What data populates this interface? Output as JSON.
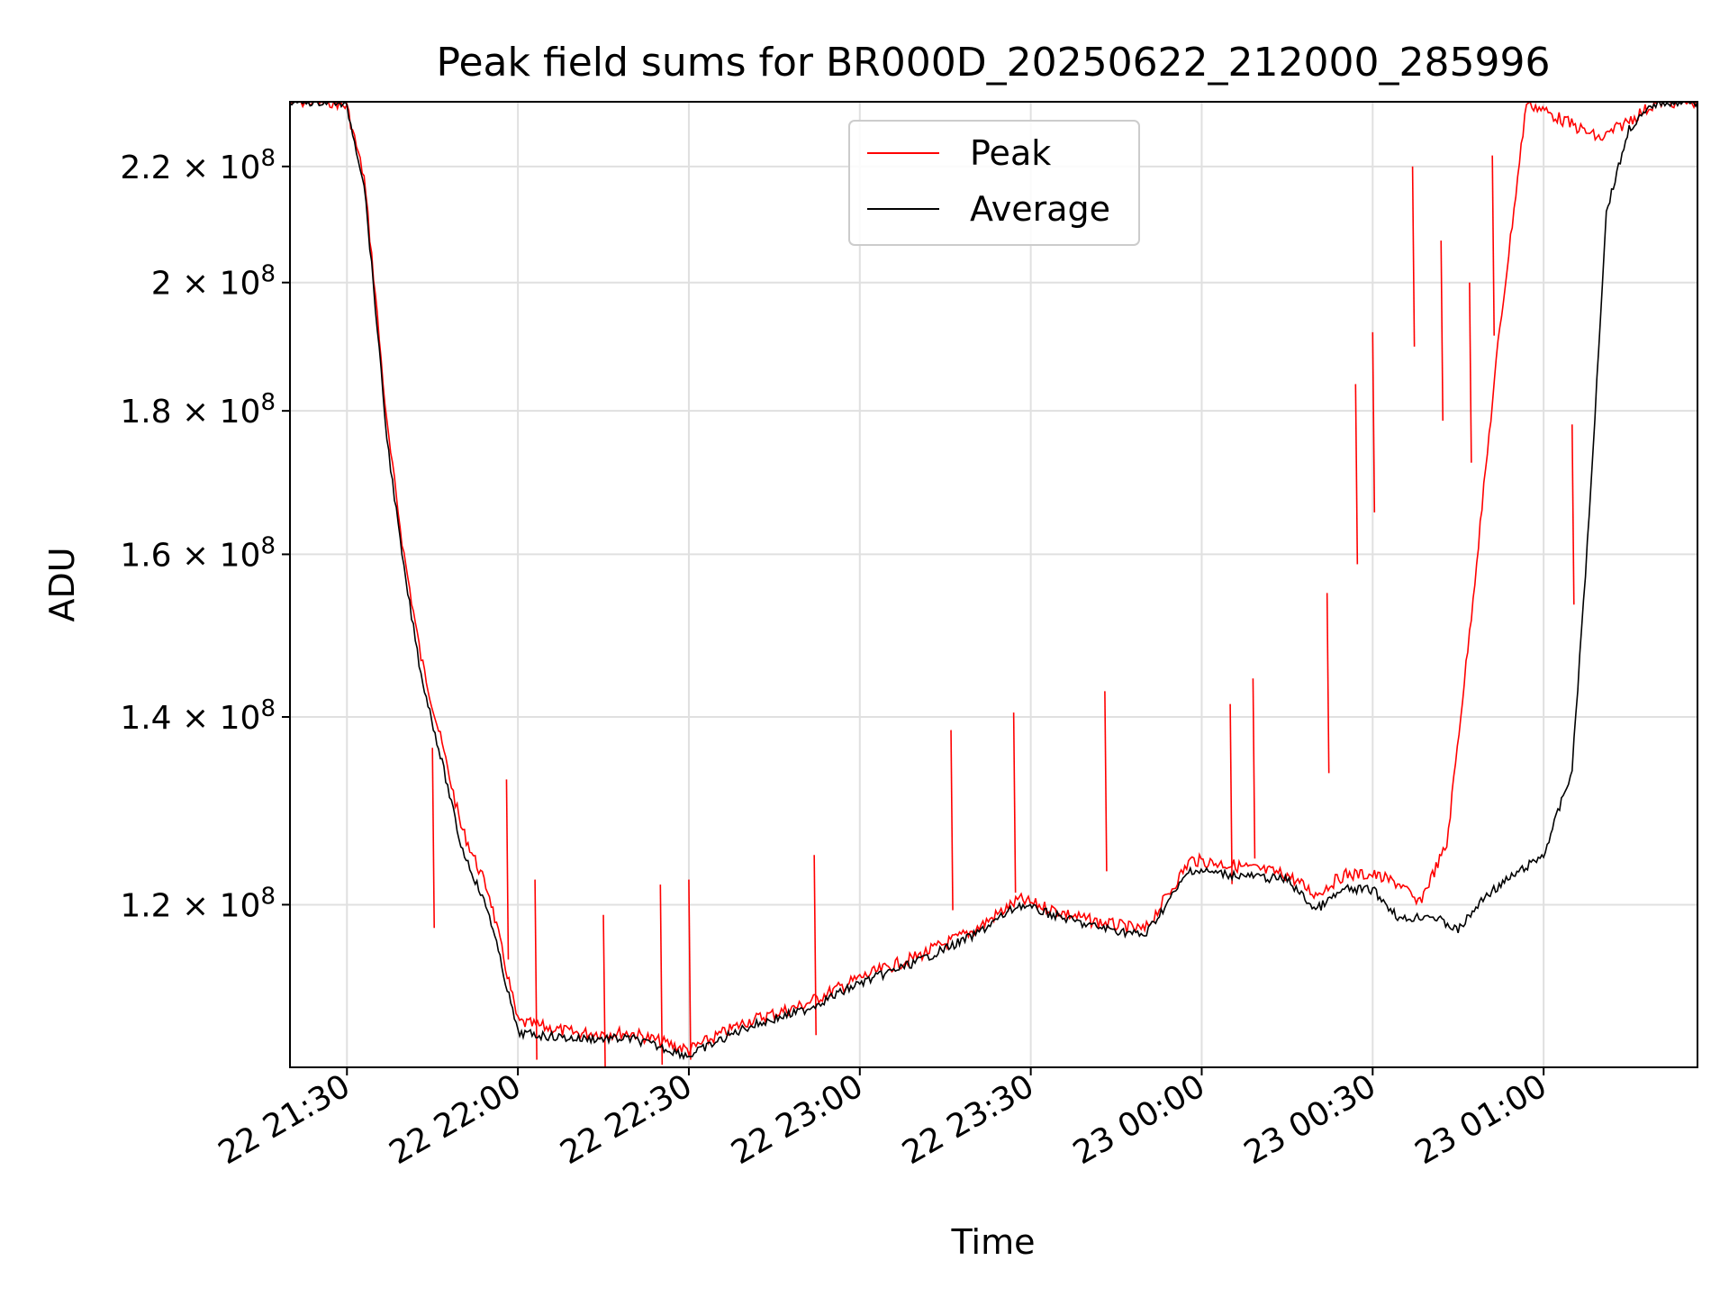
{
  "chart_data": {
    "type": "line",
    "title": "Peak field sums for BR000D_20250622_212000_285996",
    "xlabel": "Time",
    "ylabel": "ADU",
    "y_scale": "log",
    "ylim": [
      105000000,
      232000000
    ],
    "y_ticks": [
      {
        "value": 120000000,
        "mantissa": "1.2",
        "exponent": "8"
      },
      {
        "value": 140000000,
        "mantissa": "1.4",
        "exponent": "8"
      },
      {
        "value": 160000000,
        "mantissa": "1.6",
        "exponent": "8"
      },
      {
        "value": 180000000,
        "mantissa": "1.8",
        "exponent": "8"
      },
      {
        "value": 200000000,
        "mantissa": "2",
        "exponent": "8"
      },
      {
        "value": 220000000,
        "mantissa": "2.2",
        "exponent": "8"
      }
    ],
    "xlim": [
      "2025-06-22 21:20",
      "2025-06-23 01:27"
    ],
    "x_ticks": [
      {
        "value": "2025-06-22 21:30",
        "label": "22 21:30"
      },
      {
        "value": "2025-06-22 22:00",
        "label": "22 22:00"
      },
      {
        "value": "2025-06-22 22:30",
        "label": "22 22:30"
      },
      {
        "value": "2025-06-22 23:00",
        "label": "22 23:00"
      },
      {
        "value": "2025-06-22 23:30",
        "label": "22 23:30"
      },
      {
        "value": "2025-06-23 00:00",
        "label": "23 00:00"
      },
      {
        "value": "2025-06-23 00:30",
        "label": "23 00:30"
      },
      {
        "value": "2025-06-23 01:00",
        "label": "23 01:00"
      }
    ],
    "grid": true,
    "legend": {
      "placement": "top-center"
    },
    "series": [
      {
        "name": "Peak",
        "color": "#ff0000",
        "points": [
          [
            "2025-06-22 21:20",
            232000000
          ],
          [
            "2025-06-22 21:28",
            232000000
          ],
          [
            "2025-06-22 21:30",
            231000000
          ],
          [
            "2025-06-22 21:33",
            218000000
          ],
          [
            "2025-06-22 21:35",
            198000000
          ],
          [
            "2025-06-22 21:37",
            178000000
          ],
          [
            "2025-06-22 21:40",
            160000000
          ],
          [
            "2025-06-22 21:43",
            147000000
          ],
          [
            "2025-06-22 21:47",
            136000000
          ],
          [
            "2025-06-22 21:50",
            128000000
          ],
          [
            "2025-06-22 21:55",
            121000000
          ],
          [
            "2025-06-22 22:00",
            109000000
          ],
          [
            "2025-06-22 22:10",
            108000000
          ],
          [
            "2025-06-22 22:20",
            108000000
          ],
          [
            "2025-06-22 22:30",
            106500000
          ],
          [
            "2025-06-22 22:40",
            109000000
          ],
          [
            "2025-06-22 22:50",
            110500000
          ],
          [
            "2025-06-22 23:00",
            113000000
          ],
          [
            "2025-06-22 23:10",
            115000000
          ],
          [
            "2025-06-22 23:20",
            117500000
          ],
          [
            "2025-06-22 23:28",
            120500000
          ],
          [
            "2025-06-22 23:40",
            118500000
          ],
          [
            "2025-06-22 23:50",
            117500000
          ],
          [
            "2025-06-22 23:58",
            124500000
          ],
          [
            "2025-06-23 00:05",
            124000000
          ],
          [
            "2025-06-23 00:15",
            123000000
          ],
          [
            "2025-06-23 00:20",
            121000000
          ],
          [
            "2025-06-23 00:25",
            123000000
          ],
          [
            "2025-06-23 00:30",
            123000000
          ],
          [
            "2025-06-23 00:35",
            122000000
          ],
          [
            "2025-06-23 00:38",
            120000000
          ],
          [
            "2025-06-23 00:43",
            126000000
          ],
          [
            "2025-06-23 00:47",
            150000000
          ],
          [
            "2025-06-23 00:52",
            190000000
          ],
          [
            "2025-06-23 00:57",
            232000000
          ],
          [
            "2025-06-23 01:10",
            225000000
          ],
          [
            "2025-06-23 01:20",
            232000000
          ],
          [
            "2025-06-23 01:27",
            232000000
          ]
        ],
        "spikes": [
          [
            "2025-06-22 21:45",
            136500000
          ],
          [
            "2025-06-22 21:58",
            133000000
          ],
          [
            "2025-06-22 22:03",
            122500000
          ],
          [
            "2025-06-22 22:15",
            119000000
          ],
          [
            "2025-06-22 22:25",
            122000000
          ],
          [
            "2025-06-22 22:30",
            122500000
          ],
          [
            "2025-06-22 22:52",
            125000000
          ],
          [
            "2025-06-22 23:16",
            138500000
          ],
          [
            "2025-06-22 23:27",
            140500000
          ],
          [
            "2025-06-22 23:43",
            143000000
          ],
          [
            "2025-06-23 00:05",
            141500000
          ],
          [
            "2025-06-23 00:09",
            144500000
          ],
          [
            "2025-06-23 00:22",
            155000000
          ],
          [
            "2025-06-23 00:27",
            184000000
          ],
          [
            "2025-06-23 00:30",
            192000000
          ],
          [
            "2025-06-23 00:37",
            220000000
          ],
          [
            "2025-06-23 00:42",
            207000000
          ],
          [
            "2025-06-23 00:47",
            200000000
          ],
          [
            "2025-06-23 00:51",
            222000000
          ],
          [
            "2025-06-23 01:05",
            178000000
          ]
        ]
      },
      {
        "name": "Average",
        "color": "#000000",
        "points": [
          [
            "2025-06-22 21:20",
            232000000
          ],
          [
            "2025-06-22 21:28",
            232000000
          ],
          [
            "2025-06-22 21:30",
            231000000
          ],
          [
            "2025-06-22 21:33",
            217000000
          ],
          [
            "2025-06-22 21:35",
            196000000
          ],
          [
            "2025-06-22 21:37",
            176000000
          ],
          [
            "2025-06-22 21:40",
            158000000
          ],
          [
            "2025-06-22 21:43",
            145000000
          ],
          [
            "2025-06-22 21:47",
            134000000
          ],
          [
            "2025-06-22 21:50",
            126000000
          ],
          [
            "2025-06-22 21:55",
            119000000
          ],
          [
            "2025-06-22 22:00",
            108000000
          ],
          [
            "2025-06-22 22:10",
            107500000
          ],
          [
            "2025-06-22 22:20",
            107500000
          ],
          [
            "2025-06-22 22:30",
            106000000
          ],
          [
            "2025-06-22 22:40",
            108500000
          ],
          [
            "2025-06-22 22:50",
            110000000
          ],
          [
            "2025-06-22 23:00",
            112500000
          ],
          [
            "2025-06-22 23:10",
            114500000
          ],
          [
            "2025-06-22 23:20",
            117000000
          ],
          [
            "2025-06-22 23:28",
            120000000
          ],
          [
            "2025-06-22 23:40",
            118000000
          ],
          [
            "2025-06-22 23:50",
            117000000
          ],
          [
            "2025-06-22 23:58",
            123500000
          ],
          [
            "2025-06-23 00:05",
            123000000
          ],
          [
            "2025-06-23 00:15",
            122500000
          ],
          [
            "2025-06-23 00:20",
            119500000
          ],
          [
            "2025-06-23 00:25",
            121500000
          ],
          [
            "2025-06-23 00:30",
            121500000
          ],
          [
            "2025-06-23 00:35",
            118500000
          ],
          [
            "2025-06-23 00:40",
            119000000
          ],
          [
            "2025-06-23 00:45",
            117500000
          ],
          [
            "2025-06-23 00:50",
            121000000
          ],
          [
            "2025-06-23 00:55",
            123000000
          ],
          [
            "2025-06-23 01:00",
            125000000
          ],
          [
            "2025-06-23 01:05",
            134000000
          ],
          [
            "2025-06-23 01:08",
            165000000
          ],
          [
            "2025-06-23 01:11",
            212000000
          ],
          [
            "2025-06-23 01:15",
            227000000
          ],
          [
            "2025-06-23 01:20",
            232000000
          ],
          [
            "2025-06-23 01:27",
            232000000
          ]
        ]
      }
    ]
  }
}
